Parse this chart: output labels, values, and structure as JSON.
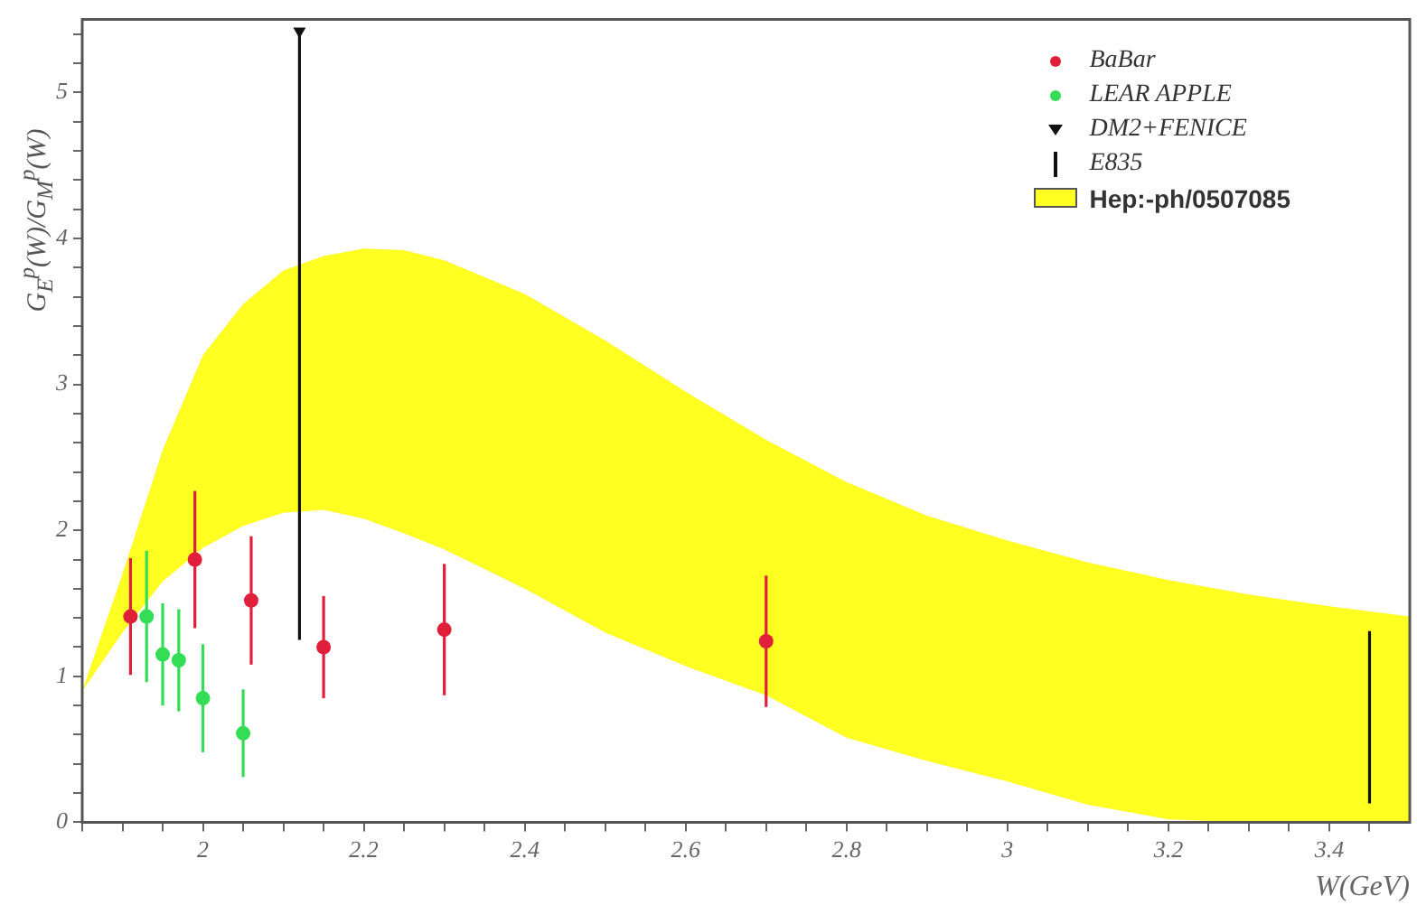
{
  "chart_data": {
    "type": "scatter",
    "xlabel": "W(GeV)",
    "ylabel": "G$_{E}$$^{p}$(W)/G$_{M}$$^{p}$(W)",
    "xlim": [
      1.85,
      3.5
    ],
    "ylim": [
      0,
      5.5
    ],
    "xticks": [
      {
        "value": 1.85,
        "label": null
      },
      {
        "value": 1.9,
        "label": null
      },
      {
        "value": 1.95,
        "label": null
      },
      2,
      {
        "value": 2.05,
        "label": null
      },
      {
        "value": 2.1,
        "label": null
      },
      {
        "value": 2.15,
        "label": null
      },
      2.2,
      {
        "value": 2.25,
        "label": null
      },
      {
        "value": 2.3,
        "label": null
      },
      {
        "value": 2.35,
        "label": null
      },
      2.4,
      {
        "value": 2.45,
        "label": null
      },
      {
        "value": 2.5,
        "label": null
      },
      {
        "value": 2.55,
        "label": null
      },
      2.6,
      {
        "value": 2.65,
        "label": null
      },
      {
        "value": 2.7,
        "label": null
      },
      {
        "value": 2.75,
        "label": null
      },
      2.8,
      {
        "value": 2.85,
        "label": null
      },
      {
        "value": 2.9,
        "label": null
      },
      {
        "value": 2.95,
        "label": null
      },
      3,
      {
        "value": 3.05,
        "label": null
      },
      {
        "value": 3.1,
        "label": null
      },
      {
        "value": 3.15,
        "label": null
      },
      3.2,
      {
        "value": 3.25,
        "label": null
      },
      {
        "value": 3.3,
        "label": null
      },
      {
        "value": 3.35,
        "label": null
      },
      3.4,
      {
        "value": 3.45,
        "label": null
      }
    ],
    "yticks": [
      0,
      {
        "value": 0.2,
        "label": null
      },
      {
        "value": 0.4,
        "label": null
      },
      {
        "value": 0.6,
        "label": null
      },
      {
        "value": 0.8,
        "label": null
      },
      1,
      {
        "value": 1.2,
        "label": null
      },
      {
        "value": 1.4,
        "label": null
      },
      {
        "value": 1.6,
        "label": null
      },
      {
        "value": 1.8,
        "label": null
      },
      2,
      {
        "value": 2.2,
        "label": null
      },
      {
        "value": 2.4,
        "label": null
      },
      {
        "value": 2.6,
        "label": null
      },
      {
        "value": 2.8,
        "label": null
      },
      3,
      {
        "value": 3.2,
        "label": null
      },
      {
        "value": 3.4,
        "label": null
      },
      {
        "value": 3.6,
        "label": null
      },
      {
        "value": 3.8,
        "label": null
      },
      4,
      {
        "value": 4.2,
        "label": null
      },
      {
        "value": 4.4,
        "label": null
      },
      {
        "value": 4.6,
        "label": null
      },
      {
        "value": 4.8,
        "label": null
      },
      5,
      {
        "value": 5.2,
        "label": null
      },
      {
        "value": 5.4,
        "label": null
      }
    ],
    "legend": "top right",
    "series": [
      {
        "name": "Hep:-ph/0507085",
        "type": "area",
        "color": "#ffff22",
        "x": [
          1.85,
          1.9,
          1.95,
          2.0,
          2.05,
          2.1,
          2.15,
          2.2,
          2.25,
          2.3,
          2.4,
          2.5,
          2.6,
          2.7,
          2.8,
          2.9,
          3.0,
          3.1,
          3.2,
          3.3,
          3.4,
          3.5
        ],
        "values": [
          null,
          null,
          null,
          null,
          null,
          null,
          null,
          null,
          null,
          null,
          null,
          null,
          null,
          null,
          null,
          null,
          null,
          null,
          null,
          null,
          null,
          null
        ],
        "lower": [
          0.9,
          1.3,
          1.65,
          1.88,
          2.03,
          2.12,
          2.14,
          2.08,
          1.98,
          1.87,
          1.6,
          1.3,
          1.07,
          0.87,
          0.58,
          0.42,
          0.28,
          0.12,
          0.02,
          0,
          0,
          0
        ],
        "upper": [
          0.9,
          1.7,
          2.55,
          3.2,
          3.55,
          3.78,
          3.88,
          3.93,
          3.92,
          3.85,
          3.62,
          3.3,
          2.95,
          2.62,
          2.33,
          2.1,
          1.93,
          1.78,
          1.66,
          1.56,
          1.48,
          1.41
        ]
      },
      {
        "name": "BaBar",
        "color": "#e0203a",
        "marker": "circle",
        "x": [
          1.91,
          1.99,
          2.06,
          2.15,
          2.3,
          2.7
        ],
        "values": [
          1.41,
          1.8,
          1.52,
          1.2,
          1.32,
          1.24
        ],
        "errors": [
          0.4,
          0.47,
          0.44,
          0.35,
          0.45,
          0.45
        ]
      },
      {
        "name": "LEAR APPLE",
        "color": "#33dd55",
        "marker": "circle",
        "x": [
          1.93,
          1.95,
          1.97,
          2.0,
          2.05
        ],
        "values": [
          1.41,
          1.15,
          1.11,
          0.85,
          0.61
        ],
        "errors": [
          0.45,
          0.35,
          0.35,
          0.37,
          0.3
        ]
      },
      {
        "name": "DM2+FENICE",
        "color": "#111111",
        "marker": "triangle",
        "x": [
          2.12
        ],
        "values": [
          5.42
        ],
        "errors": [
          [
            1.25,
            5.42
          ]
        ]
      },
      {
        "name": "E835",
        "type": "line",
        "color": "#111111",
        "marker": "none",
        "x": [
          3.45,
          3.45
        ],
        "values": [
          0.13,
          1.31
        ]
      }
    ]
  }
}
